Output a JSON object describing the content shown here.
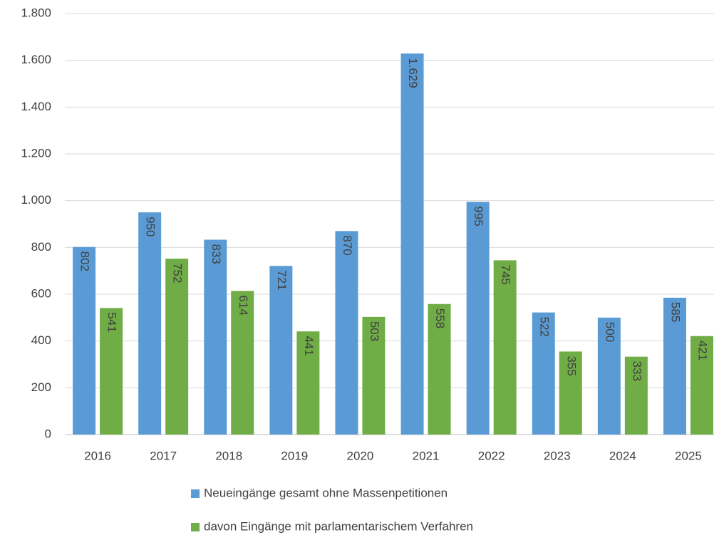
{
  "chart_data": {
    "type": "bar",
    "categories": [
      "2016",
      "2017",
      "2018",
      "2019",
      "2020",
      "2021",
      "2022",
      "2023",
      "2024",
      "2025"
    ],
    "series": [
      {
        "name": "Neueingänge gesamt ohne Massenpetitionen",
        "color": "#5b9bd5",
        "values": [
          802,
          950,
          833,
          721,
          870,
          1629,
          995,
          522,
          500,
          585
        ],
        "value_labels": [
          "802",
          "950",
          "833",
          "721",
          "870",
          "1.629",
          "995",
          "522",
          "500",
          "585"
        ]
      },
      {
        "name": "davon Eingänge mit parlamentarischem Verfahren",
        "color": "#70ad47",
        "values": [
          541,
          752,
          614,
          441,
          503,
          558,
          745,
          355,
          333,
          421
        ]
      }
    ],
    "ylim": [
      0,
      1800
    ],
    "yticks": [
      0,
      200,
      400,
      600,
      800,
      {
        "value": 1000,
        "label": "1.000"
      },
      {
        "value": 1200,
        "label": "1.200"
      },
      {
        "value": 1400,
        "label": "1.400"
      },
      {
        "value": 1600,
        "label": "1.600"
      },
      {
        "value": 1800,
        "label": "1.800"
      }
    ],
    "grid": true,
    "legend": "bottom"
  }
}
